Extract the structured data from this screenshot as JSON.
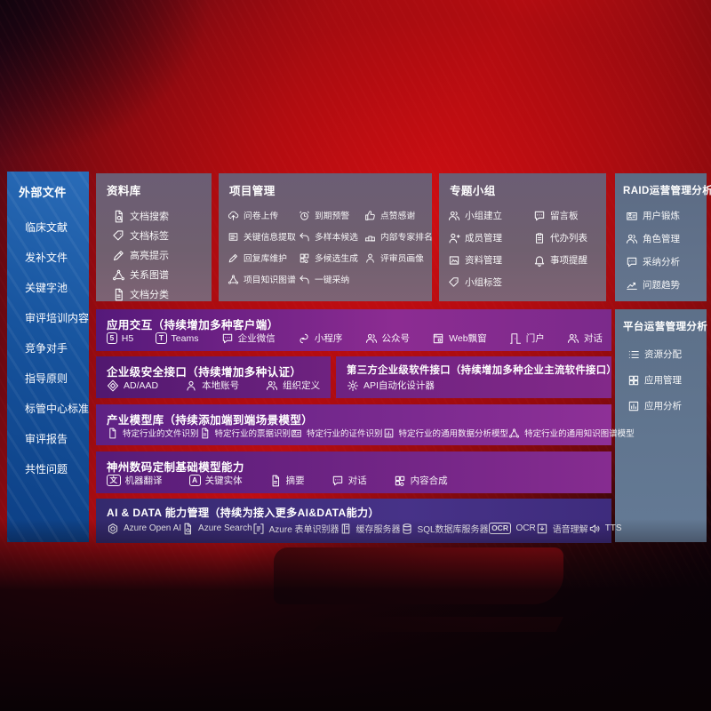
{
  "colors": {
    "background_red": "#c30e13",
    "sidebar_blue": "#17549e",
    "top_box_gray": "#6e5f73",
    "raid_box_gray": "#5f7089",
    "band_purple": "#7b2a8c",
    "band_indigo": "#3f2d7d",
    "text": "#ffffff"
  },
  "sidebar": {
    "title": "外部文件",
    "items": [
      "临床文献",
      "发补文件",
      "关键字池",
      "审评培训内容",
      "竞争对手",
      "指导原则",
      "标管中心标准",
      "审评报告",
      "共性问题"
    ]
  },
  "library": {
    "title": "资料库",
    "items": [
      {
        "icon": "doc-search",
        "label": "文档搜索"
      },
      {
        "icon": "tag",
        "label": "文档标签"
      },
      {
        "icon": "pen",
        "label": "高亮提示"
      },
      {
        "icon": "graph",
        "label": "关系图谱"
      },
      {
        "icon": "doc-lines",
        "label": "文档分类"
      }
    ]
  },
  "project": {
    "title": "项目管理",
    "items": [
      {
        "icon": "cloud-upload",
        "label": "问卷上传"
      },
      {
        "icon": "alarm",
        "label": "到期预警"
      },
      {
        "icon": "thumb-up",
        "label": "点赞感谢"
      },
      {
        "icon": "card-lines",
        "label": "关键信息提取"
      },
      {
        "icon": "reply",
        "label": "多样本候选"
      },
      {
        "icon": "podium",
        "label": "内部专家排名"
      },
      {
        "icon": "pen",
        "label": "回复库维护"
      },
      {
        "icon": "puzzle",
        "label": "多候选生成"
      },
      {
        "icon": "person",
        "label": "评审员画像"
      },
      {
        "icon": "graph",
        "label": "项目知识图谱"
      },
      {
        "icon": "reply",
        "label": "一键采纳"
      }
    ]
  },
  "groups": {
    "title": "专题小组",
    "items": [
      {
        "icon": "people",
        "label": "小组建立"
      },
      {
        "icon": "chat",
        "label": "留言板"
      },
      {
        "icon": "person-plus",
        "label": "成员管理"
      },
      {
        "icon": "clipboard",
        "label": "代办列表"
      },
      {
        "icon": "photo",
        "label": "资料管理"
      },
      {
        "icon": "bell",
        "label": "事项提醒"
      },
      {
        "icon": "tag",
        "label": "小组标签"
      }
    ]
  },
  "raid": {
    "title": "RAID运营管理分析",
    "items": [
      {
        "icon": "id-card",
        "label": "用户锻炼"
      },
      {
        "icon": "people",
        "label": "角色管理"
      },
      {
        "icon": "chat",
        "label": "采纳分析"
      },
      {
        "icon": "trend",
        "label": "问题趋势"
      }
    ]
  },
  "platform": {
    "title": "平台运营管理分析",
    "items": [
      {
        "icon": "list",
        "label": "资源分配"
      },
      {
        "icon": "grid",
        "label": "应用管理"
      },
      {
        "icon": "chart-box",
        "label": "应用分析"
      }
    ]
  },
  "interaction": {
    "title": "应用交互（持续增加多种客户端）",
    "items": [
      {
        "icon": "badge:5",
        "label": "H5"
      },
      {
        "icon": "badge:T",
        "label": "Teams"
      },
      {
        "icon": "chat",
        "label": "企业微信"
      },
      {
        "icon": "mini-s",
        "label": "小程序"
      },
      {
        "icon": "people",
        "label": "公众号"
      },
      {
        "icon": "browser",
        "label": "Web飘窗"
      },
      {
        "icon": "door",
        "label": "门户"
      },
      {
        "icon": "people",
        "label": "对话"
      }
    ]
  },
  "security": {
    "title": "企业级安全接口（持续增加多种认证）",
    "items": [
      {
        "icon": "diamond",
        "label": "AD/AAD"
      },
      {
        "icon": "person",
        "label": "本地账号"
      },
      {
        "icon": "people",
        "label": "组织定义"
      }
    ]
  },
  "thirdparty": {
    "title": "第三方企业级软件接口（持续增加多种企业主流软件接口）",
    "items": [
      {
        "icon": "gear",
        "label": "API自动化设计器"
      }
    ]
  },
  "models": {
    "title": "产业模型库（持续添加端到端场景模型）",
    "items": [
      {
        "icon": "doc",
        "label": "特定行业的文件识别"
      },
      {
        "icon": "doc-lines",
        "label": "特定行业的票据识别"
      },
      {
        "icon": "id-card",
        "label": "特定行业的证件识别"
      },
      {
        "icon": "chart-box",
        "label": "特定行业的通用数据分析模型"
      },
      {
        "icon": "graph",
        "label": "特定行业的通用知识图谱模型"
      }
    ]
  },
  "foundation": {
    "title": "神州数码定制基础模型能力",
    "items": [
      {
        "icon": "badge:文",
        "label": "机器翻译"
      },
      {
        "icon": "badge:A",
        "label": "关键实体"
      },
      {
        "icon": "doc-lines",
        "label": "摘要"
      },
      {
        "icon": "chat",
        "label": "对话"
      },
      {
        "icon": "puzzle",
        "label": "内容合成"
      }
    ]
  },
  "aidata": {
    "title": "AI & DATA 能力管理（持续为接入更多AI&DATA能力）",
    "items": [
      {
        "icon": "openai",
        "label": "Azure Open AI"
      },
      {
        "icon": "doc-search",
        "label": "Azure Search"
      },
      {
        "icon": "form",
        "label": "Azure 表单识别器"
      },
      {
        "icon": "server",
        "label": "缓存服务器"
      },
      {
        "icon": "db",
        "label": "SQL数据库服务器"
      },
      {
        "icon": "badge:OCR",
        "label": "OCR"
      },
      {
        "icon": "download-box",
        "label": "语音理解"
      },
      {
        "icon": "speaker",
        "label": "TTS"
      }
    ]
  }
}
